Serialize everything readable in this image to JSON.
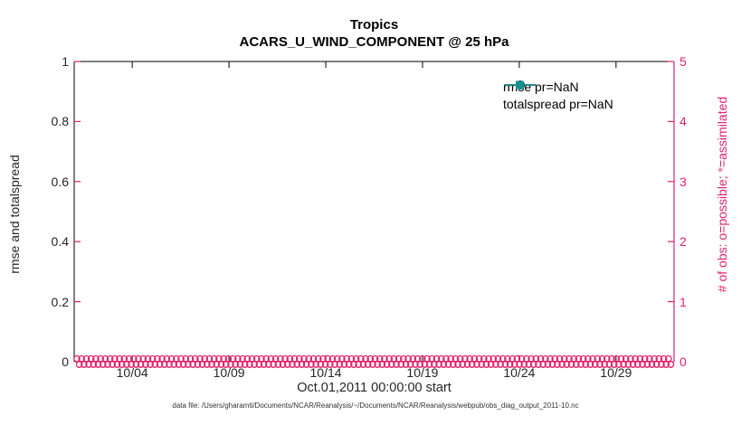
{
  "title": {
    "line1": "Tropics",
    "line2": "ACARS_U_WIND_COMPONENT @ 25 hPa"
  },
  "axes": {
    "ylabel_left": "rmse and totalspread",
    "ylabel_right_prefix": "# of obs: o=possible; ",
    "ylabel_right_symbol": "*",
    "ylabel_right_suffix": "=assimilated",
    "xlabel": "Oct.01,2011 00:00:00 start",
    "left_ticks": [
      "0",
      "0.2",
      "0.4",
      "0.6",
      "0.8",
      "1"
    ],
    "right_ticks": [
      "0",
      "1",
      "2",
      "3",
      "4",
      "5"
    ],
    "x_ticks": [
      {
        "label": "10/04",
        "day": 3
      },
      {
        "label": "10/09",
        "day": 8
      },
      {
        "label": "10/14",
        "day": 13
      },
      {
        "label": "10/19",
        "day": 18
      },
      {
        "label": "10/24",
        "day": 23
      },
      {
        "label": "10/29",
        "day": 28
      }
    ],
    "x_span_days": 31
  },
  "legend": {
    "entries": [
      {
        "label": "rmse pr=NaN",
        "color": "#000000",
        "marker": "circle"
      },
      {
        "label": "totalspread pr=NaN",
        "color": "#178f8f",
        "marker": "square"
      }
    ]
  },
  "footer": "data file: /Users/gharamti/Documents/NCAR/Reanalysis/~/Documents/NCAR/Reanalysis/webpub/obs_diag_output_2011-10.nc",
  "colors": {
    "obs_axis": "#e0236a",
    "obs_marker": "#e0236a",
    "frame": "#000000",
    "text": "#262626",
    "rmse": "#000000",
    "totalspread": "#178f8f"
  },
  "obs_band": {
    "marker_symbol": "o",
    "value": 0,
    "count_per_row": 126,
    "rows": 2
  },
  "chart_data": {
    "type": "line",
    "title": "Tropics",
    "subtitle": "ACARS_U_WIND_COMPONENT @ 25 hPa",
    "xlabel": "Oct.01,2011 00:00:00 start",
    "ylabel_left": "rmse and totalspread",
    "ylabel_right": "# of obs: o=possible; *=assimilated",
    "x_tick_labels": [
      "10/04",
      "10/09",
      "10/14",
      "10/19",
      "10/24",
      "10/29"
    ],
    "x_range_days": [
      0,
      31
    ],
    "ylim_left": [
      0,
      1
    ],
    "ylim_right": [
      0,
      5
    ],
    "grid": false,
    "legend_position": "top-right-inside",
    "series": [
      {
        "name": "rmse pr=NaN",
        "axis": "left",
        "color": "#000000",
        "marker": "circle",
        "values": "NaN (nothing plotted)"
      },
      {
        "name": "totalspread pr=NaN",
        "axis": "left",
        "color": "#178f8f",
        "marker": "square",
        "values": "NaN (nothing plotted)"
      },
      {
        "name": "# of obs possible (o)",
        "axis": "right",
        "color": "#e0236a",
        "marker": "o",
        "value_constant": 0
      },
      {
        "name": "# of obs assimilated (*)",
        "axis": "right",
        "color": "#e0236a",
        "marker": "*",
        "value_constant": 0
      }
    ]
  }
}
